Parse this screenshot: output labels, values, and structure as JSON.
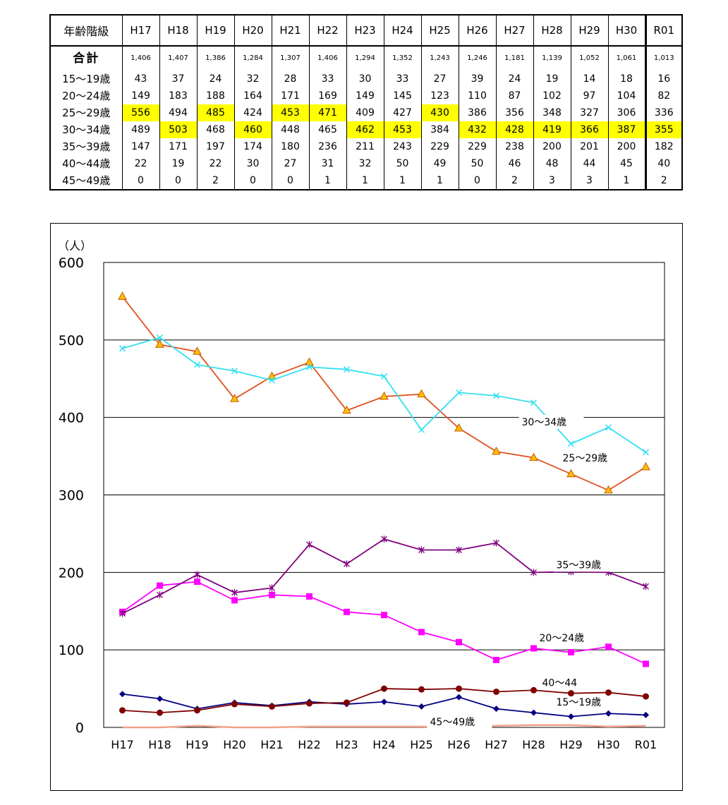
{
  "table": {
    "header_label": "年齢階級",
    "years": [
      "H17",
      "H18",
      "H19",
      "H20",
      "H21",
      "H22",
      "H23",
      "H24",
      "H25",
      "H26",
      "H27",
      "H28",
      "H29",
      "H30",
      "R01"
    ],
    "total": {
      "label": "合計",
      "values": [
        "1,406",
        "1,407",
        "1,386",
        "1,284",
        "1,307",
        "1,406",
        "1,294",
        "1,352",
        "1,243",
        "1,246",
        "1,181",
        "1,139",
        "1,052",
        "1,061",
        "1,013"
      ]
    },
    "rows": [
      {
        "label": "15～19歳",
        "values": [
          "43",
          "37",
          "24",
          "32",
          "28",
          "33",
          "30",
          "33",
          "27",
          "39",
          "24",
          "19",
          "14",
          "18",
          "16"
        ],
        "highlight": []
      },
      {
        "label": "20～24歳",
        "values": [
          "149",
          "183",
          "188",
          "164",
          "171",
          "169",
          "149",
          "145",
          "123",
          "110",
          "87",
          "102",
          "97",
          "104",
          "82"
        ],
        "highlight": []
      },
      {
        "label": "25～29歳",
        "values": [
          "556",
          "494",
          "485",
          "424",
          "453",
          "471",
          "409",
          "427",
          "430",
          "386",
          "356",
          "348",
          "327",
          "306",
          "336"
        ],
        "highlight": [
          0,
          2,
          4,
          5,
          8
        ]
      },
      {
        "label": "30～34歳",
        "values": [
          "489",
          "503",
          "468",
          "460",
          "448",
          "465",
          "462",
          "453",
          "384",
          "432",
          "428",
          "419",
          "366",
          "387",
          "355"
        ],
        "highlight": [
          1,
          3,
          6,
          7,
          9,
          10,
          11,
          12,
          13,
          14
        ]
      },
      {
        "label": "35～39歳",
        "values": [
          "147",
          "171",
          "197",
          "174",
          "180",
          "236",
          "211",
          "243",
          "229",
          "229",
          "238",
          "200",
          "201",
          "200",
          "182"
        ],
        "highlight": []
      },
      {
        "label": "40～44歳",
        "values": [
          "22",
          "19",
          "22",
          "30",
          "27",
          "31",
          "32",
          "50",
          "49",
          "50",
          "46",
          "48",
          "44",
          "45",
          "40"
        ],
        "highlight": []
      },
      {
        "label": "45～49歳",
        "values": [
          "0",
          "0",
          "2",
          "0",
          "0",
          "1",
          "1",
          "1",
          "1",
          "0",
          "2",
          "3",
          "3",
          "1",
          "2"
        ],
        "highlight": []
      }
    ],
    "highlight_color": "#ffff00"
  },
  "chart_data": {
    "type": "line",
    "unit_label": "（人）",
    "categories": [
      "H17",
      "H18",
      "H19",
      "H20",
      "H21",
      "H22",
      "H23",
      "H24",
      "H25",
      "H26",
      "H27",
      "H28",
      "H29",
      "H30",
      "R01"
    ],
    "ylim": [
      0,
      600
    ],
    "yticks": [
      0,
      100,
      200,
      300,
      400,
      500,
      600
    ],
    "grid": true,
    "series": [
      {
        "name": "15～19歳",
        "color": "#000080",
        "marker": "diamond",
        "values": [
          43,
          37,
          24,
          32,
          28,
          33,
          30,
          33,
          27,
          39,
          24,
          19,
          14,
          18,
          16
        ]
      },
      {
        "name": "20～24歳",
        "color": "#ff00ff",
        "marker": "square",
        "values": [
          149,
          183,
          188,
          164,
          171,
          169,
          149,
          145,
          123,
          110,
          87,
          102,
          97,
          104,
          82
        ]
      },
      {
        "name": "25～29歳",
        "color": "#e2501e",
        "marker": "triangle",
        "values": [
          556,
          494,
          485,
          424,
          453,
          471,
          409,
          427,
          430,
          386,
          356,
          348,
          327,
          306,
          336
        ]
      },
      {
        "name": "30～34歳",
        "color": "#33e0f0",
        "marker": "x",
        "values": [
          489,
          503,
          468,
          460,
          448,
          465,
          462,
          453,
          384,
          432,
          428,
          419,
          366,
          387,
          355
        ]
      },
      {
        "name": "35～39歳",
        "color": "#800080",
        "marker": "star",
        "values": [
          147,
          171,
          197,
          174,
          180,
          236,
          211,
          243,
          229,
          229,
          238,
          200,
          201,
          200,
          182
        ]
      },
      {
        "name": "40～44",
        "color": "#800000",
        "marker": "circle",
        "values": [
          22,
          19,
          22,
          30,
          27,
          31,
          32,
          50,
          49,
          50,
          46,
          48,
          44,
          45,
          40
        ]
      },
      {
        "name": "45～49歳",
        "color": "#f4a08a",
        "marker": "none",
        "values": [
          0,
          0,
          2,
          0,
          0,
          1,
          1,
          1,
          1,
          0,
          2,
          3,
          3,
          1,
          2
        ]
      }
    ]
  }
}
